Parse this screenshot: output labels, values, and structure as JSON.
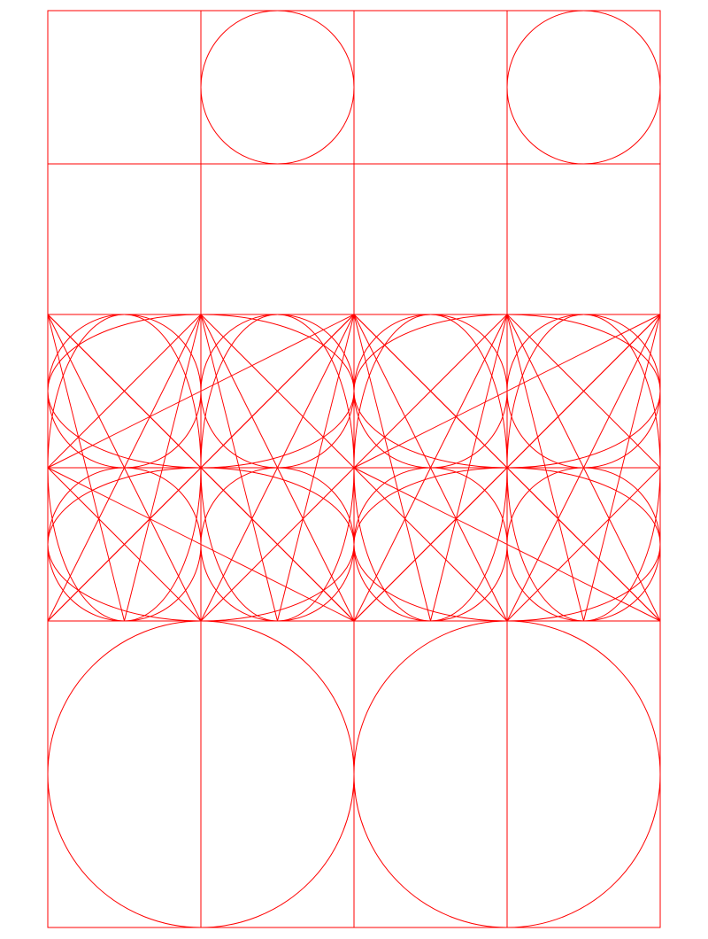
{
  "diagram": {
    "stroke_color": "#ff0000",
    "background": "#ffffff",
    "description_elements": {
      "outer_frame": "rectangle-frame",
      "rows": 5,
      "cols": 4
    }
  }
}
